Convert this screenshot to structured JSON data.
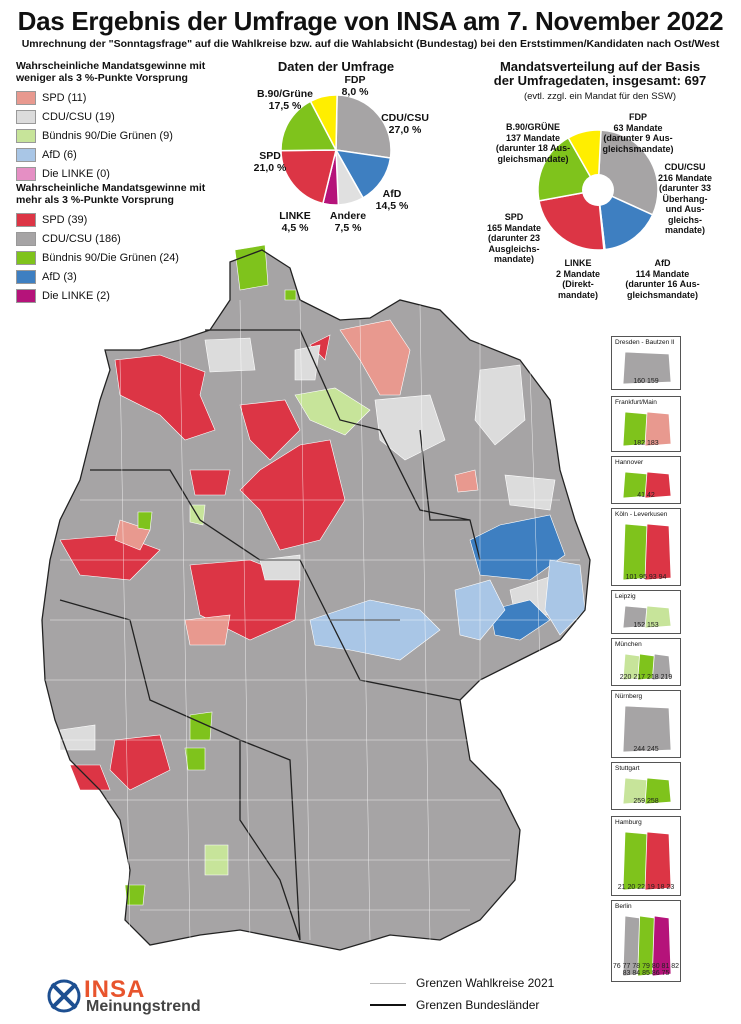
{
  "header": {
    "title": "Das Ergebnis der Umfrage von INSA am 7. November 2022",
    "subtitle": "Umrechnung der \"Sonntagsfrage\" auf die Wahlkreise bzw. auf die Wahlabsicht (Bundestag) bei den Erststimmen/Kandidaten nach Ost/West"
  },
  "colors": {
    "spd_strong": "#dc3545",
    "spd_weak": "#e8998f",
    "cdu_strong": "#a6a4a5",
    "cdu_weak": "#dcdcdc",
    "gruene_strong": "#7fc31c",
    "gruene_weak": "#c7e49a",
    "afd_strong": "#3e7fc1",
    "afd_weak": "#a9c6e6",
    "linke_strong": "#b5137a",
    "linke_weak": "#e58fc4",
    "fdp": "#ffee00",
    "andere": "#e0e0e0"
  },
  "legend_weak": {
    "heading": "Wahrscheinliche Mandatsgewinne mit\nweniger als 3 %-Punkte Vorsprung",
    "items": [
      {
        "label": "SPD (11)",
        "color": "#e8998f"
      },
      {
        "label": "CDU/CSU (19)",
        "color": "#dcdcdc"
      },
      {
        "label": "Bündnis 90/Die Grünen (9)",
        "color": "#c7e49a"
      },
      {
        "label": "AfD (6)",
        "color": "#a9c6e6"
      },
      {
        "label": "Die LINKE (0)",
        "color": "#e58fc4"
      }
    ]
  },
  "legend_strong": {
    "heading": "Wahrscheinliche Mandatsgewinne mit\nmehr als 3 %-Punkte Vorsprung",
    "items": [
      {
        "label": "SPD (39)",
        "color": "#dc3545"
      },
      {
        "label": "CDU/CSU (186)",
        "color": "#a6a4a5"
      },
      {
        "label": "Bündnis 90/Die Grünen (24)",
        "color": "#7fc31c"
      },
      {
        "label": "AfD (3)",
        "color": "#3e7fc1"
      },
      {
        "label": "Die LINKE (2)",
        "color": "#b5137a"
      }
    ]
  },
  "survey": {
    "title": "Daten der Umfrage",
    "slices": [
      {
        "party": "CDU/CSU",
        "label": "CDU/CSU\n27,0 %",
        "value": 27.0,
        "color": "#a6a4a5"
      },
      {
        "party": "AfD",
        "label": "AfD\n14,5 %",
        "value": 14.5,
        "color": "#3e7fc1"
      },
      {
        "party": "Andere",
        "label": "Andere\n7,5 %",
        "value": 7.5,
        "color": "#e0e0e0"
      },
      {
        "party": "LINKE",
        "label": "LINKE\n4,5 %",
        "value": 4.5,
        "color": "#b5137a"
      },
      {
        "party": "SPD",
        "label": "SPD\n21,0 %",
        "value": 21.0,
        "color": "#dc3545"
      },
      {
        "party": "B.90/Grüne",
        "label": "B.90/Grüne\n17,5 %",
        "value": 17.5,
        "color": "#7fc31c"
      },
      {
        "party": "FDP",
        "label": "FDP\n8,0 %",
        "value": 8.0,
        "color": "#ffee00"
      }
    ]
  },
  "seats": {
    "title": "Mandatsverteilung auf der Basis\nder Umfragedaten, insgesamt: 697",
    "subtitle": "(evtl. zzgl. ein Mandat für den SSW)",
    "slices": [
      {
        "party": "CDU/CSU",
        "label": "CDU/CSU\n216 Mandate\n(darunter 33\nÜberhang-\nund Aus-\ngleichs-\nmandate)",
        "value": 216,
        "color": "#a6a4a5"
      },
      {
        "party": "AfD",
        "label": "AfD\n114 Mandate\n(darunter 16 Aus-\ngleichsmandate)",
        "value": 114,
        "color": "#3e7fc1"
      },
      {
        "party": "LINKE",
        "label": "LINKE\n2 Mandate\n(Direkt-\nmandate)",
        "value": 2,
        "color": "#b5137a"
      },
      {
        "party": "SPD",
        "label": "SPD\n165 Mandate\n(darunter 23\nAusgleichs-\nmandate)",
        "value": 165,
        "color": "#dc3545"
      },
      {
        "party": "B.90/GRÜNE",
        "label": "B.90/GRÜNE\n137 Mandate\n(darunter 18 Aus-\ngleichsmandate)",
        "value": 137,
        "color": "#7fc31c"
      },
      {
        "party": "FDP",
        "label": "FDP\n63 Mandate\n(darunter 9 Aus-\ngleichsmandate)",
        "value": 63,
        "color": "#ffee00"
      }
    ]
  },
  "insets": [
    {
      "name": "Dresden - Bautzen II",
      "numbers": "160 159"
    },
    {
      "name": "Frankfurt/Main",
      "numbers": "182 183"
    },
    {
      "name": "Hannover",
      "numbers": "41 42"
    },
    {
      "name": "Köln - Leverkusen",
      "numbers": "101 95 93 94"
    },
    {
      "name": "Leipzig",
      "numbers": "152 153"
    },
    {
      "name": "München",
      "numbers": "220 217 218 219"
    },
    {
      "name": "Nürnberg",
      "numbers": "244 245"
    },
    {
      "name": "Stuttgart",
      "numbers": "259 258"
    },
    {
      "name": "Hamburg",
      "numbers": "21 20 22 19 18 23"
    },
    {
      "name": "Berlin",
      "numbers": "76 77 78 79 80 81 82 83 84 85 86 75"
    }
  ],
  "map_legend": {
    "wahlkreise": "Grenzen Wahlkreise 2021",
    "bundeslaender": "Grenzen Bundesländer"
  },
  "logo": {
    "brand": "INSA",
    "tagline": "Meinungstrend"
  }
}
